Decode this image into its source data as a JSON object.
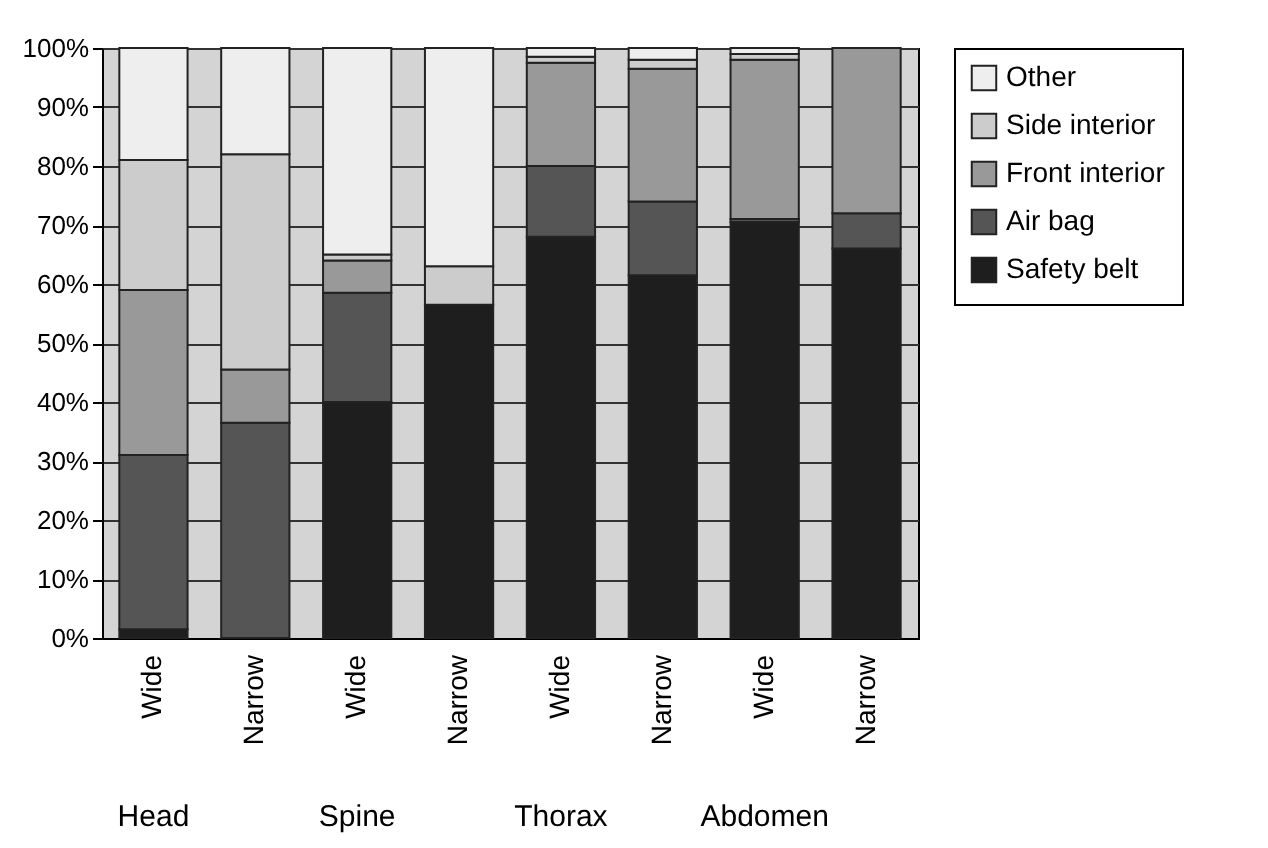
{
  "chart_data": {
    "type": "bar",
    "stacked": true,
    "categories": [
      "Wide",
      "Narrow",
      "Wide",
      "Narrow",
      "Wide",
      "Narrow",
      "Wide",
      "Narrow"
    ],
    "annotations": [
      "Head",
      "Spine",
      "Thorax",
      "Abdomen"
    ],
    "series": [
      {
        "name": "Safety belt",
        "color": "#1e1e1e",
        "values": [
          1.5,
          0,
          40,
          56.5,
          68,
          61.5,
          70.5,
          66
        ]
      },
      {
        "name": "Air bag",
        "color": "#555555",
        "values": [
          29.5,
          36.5,
          18.5,
          0,
          12,
          12.5,
          0.5,
          6
        ]
      },
      {
        "name": "Front interior",
        "color": "#999999",
        "values": [
          28,
          9,
          5.5,
          0,
          17.5,
          22.5,
          27,
          28
        ]
      },
      {
        "name": "Side interior",
        "color": "#cccccc",
        "values": [
          22,
          36.5,
          1,
          6.5,
          1,
          1.5,
          1,
          0
        ]
      },
      {
        "name": "Other",
        "color": "#eeeeee",
        "values": [
          19,
          18,
          35,
          37,
          1.5,
          2,
          1,
          0
        ]
      }
    ],
    "ylim": [
      0,
      100
    ],
    "yticks": [
      {
        "value": 0,
        "label": "0%"
      },
      {
        "value": 10,
        "label": "10%"
      },
      {
        "value": 20,
        "label": "20%"
      },
      {
        "value": 30,
        "label": "30%"
      },
      {
        "value": 40,
        "label": "40%"
      },
      {
        "value": 50,
        "label": "50%"
      },
      {
        "value": 60,
        "label": "60%"
      },
      {
        "value": 70,
        "label": "70%"
      },
      {
        "value": 80,
        "label": "80%"
      },
      {
        "value": 90,
        "label": "90%"
      },
      {
        "value": 100,
        "label": "100%"
      }
    ],
    "grid": "y",
    "legend": "right"
  }
}
